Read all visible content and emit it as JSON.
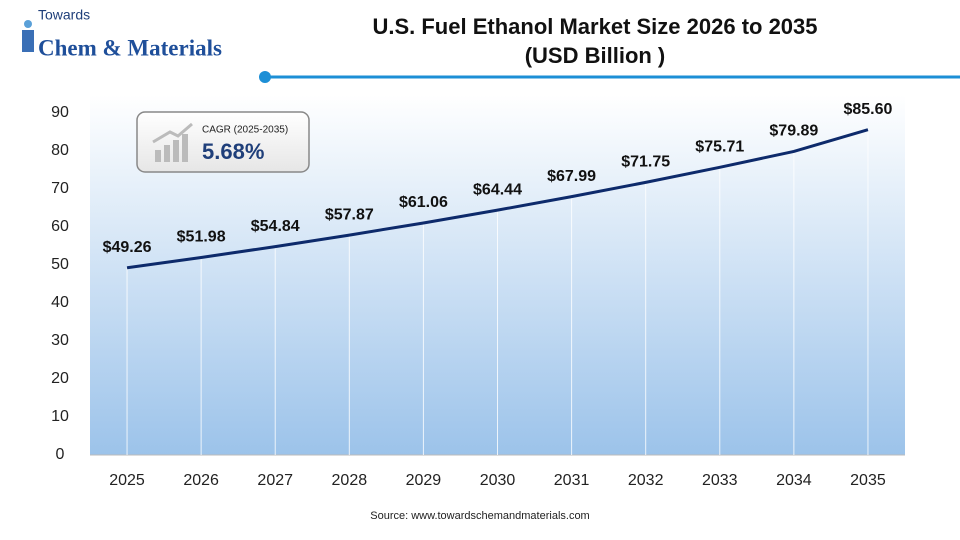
{
  "logo": {
    "line1": "Towards",
    "line2": "Chem & Materials"
  },
  "chart_data": {
    "type": "line",
    "title": "U.S. Fuel Ethanol Market Size 2026 to 2035",
    "subtitle": "(USD Billion )",
    "categories": [
      "2025",
      "2026",
      "2027",
      "2028",
      "2029",
      "2030",
      "2031",
      "2032",
      "2033",
      "2034",
      "2035"
    ],
    "values": [
      49.26,
      51.98,
      54.84,
      57.87,
      61.06,
      64.44,
      67.99,
      71.75,
      75.71,
      79.89,
      85.6
    ],
    "value_labels": [
      "$49.26",
      "$51.98",
      "$54.84",
      "$57.87",
      "$61.06",
      "$64.44",
      "$67.99",
      "$71.75",
      "$75.71",
      "$79.89",
      "$85.60"
    ],
    "color": "#0d2a6b",
    "ylim": [
      0,
      90
    ],
    "yticks": [
      0,
      10,
      20,
      30,
      40,
      50,
      60,
      70,
      80,
      90
    ],
    "annotation": {
      "label": "CAGR (2025-2035)",
      "value": "5.68%"
    },
    "source": "Source: www.towardschemandmaterials.com"
  }
}
